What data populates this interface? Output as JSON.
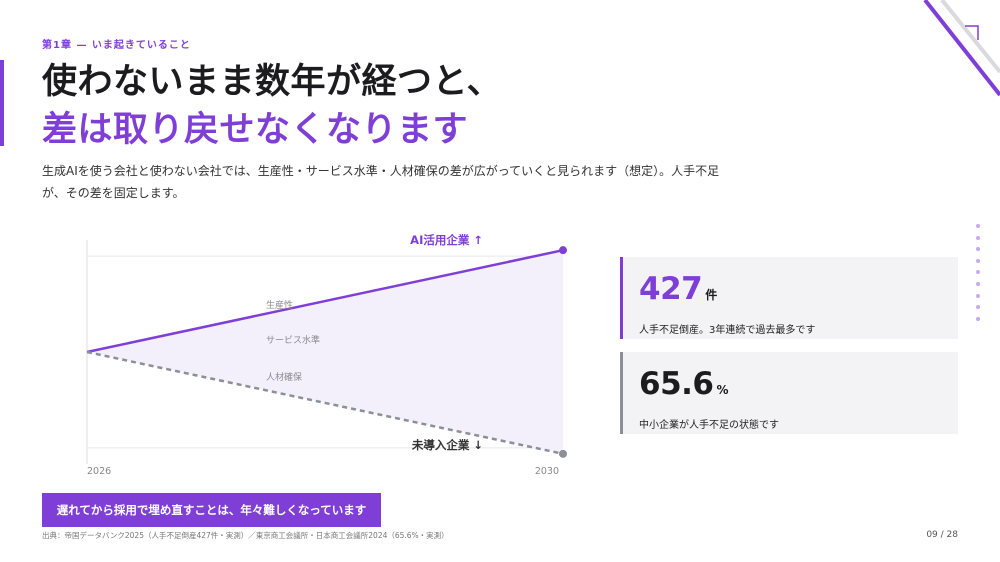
{
  "chapter": "第1章 — いま起きていること",
  "headline": {
    "line1": "使わないまま数年が経つと、",
    "line2": "差は取り戻せなくなります"
  },
  "lead": "生成AIを使う会社と使わない会社では、生産性・サービス水準・人材確保の差が広がっていくと見られます（想定）。人手不足が、その差を固定します。",
  "colors": {
    "accent": "#7f3fd6",
    "muted": "#8a8f98",
    "fill": "#f3effb"
  },
  "chart_data": {
    "type": "line",
    "x": [
      "2026",
      "2030"
    ],
    "series": [
      {
        "name": "AI活用企業 ↑",
        "values": [
          0,
          1
        ]
      },
      {
        "name": "未導入企業 ↓",
        "values": [
          0,
          -1
        ]
      }
    ],
    "annotations": [
      "生産性",
      "サービス水準",
      "人材確保"
    ],
    "ylim": [
      -1.1,
      1.1
    ],
    "grid": true
  },
  "stats": [
    {
      "value": "427",
      "unit": "件",
      "desc": "人手不足倒産。3年連続で過去最多です"
    },
    {
      "value": "65.6",
      "unit": "%",
      "desc": "中小企業が人手不足の状態です"
    }
  ],
  "cta": "遅れてから採用で埋め直すことは、年々難しくなっています",
  "source": "出典：帝国データバンク2025（人手不足倒産427件・実測）／東京商工会議所・日本商工会議所2024（65.6%・実測）",
  "page": "09 / 28"
}
